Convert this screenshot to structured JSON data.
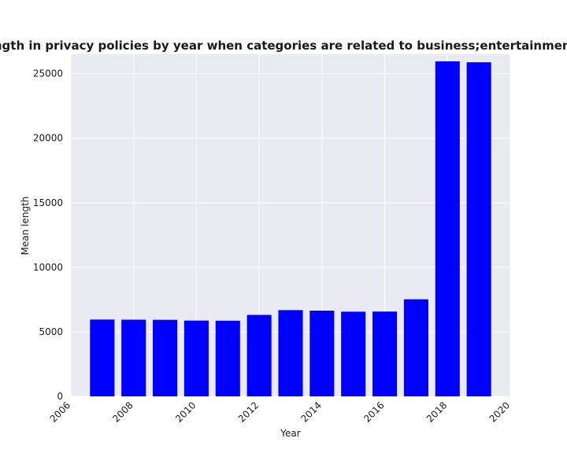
{
  "chart_data": {
    "type": "bar",
    "title": "Mean length in privacy policies by year when categories are related to business;entertainment;weapons",
    "xlabel": "Year",
    "ylabel": "Mean length",
    "x": [
      2007,
      2008,
      2009,
      2010,
      2011,
      2012,
      2013,
      2014,
      2015,
      2016,
      2017,
      2018,
      2019
    ],
    "values": [
      5950,
      5940,
      5930,
      5870,
      5860,
      6310,
      6680,
      6640,
      6560,
      6570,
      7520,
      25950,
      25880
    ],
    "xlim": [
      2006,
      2020
    ],
    "ylim": [
      0,
      26500
    ],
    "xticks": [
      "2006",
      "2008",
      "2010",
      "2012",
      "2014",
      "2016",
      "2018",
      "2020"
    ],
    "yticks": [
      "0",
      "5000",
      "10000",
      "15000",
      "20000",
      "25000"
    ],
    "grid": true,
    "colors": {
      "bar": "#0000ff",
      "plot_background": "#eaeaf2",
      "grid": "#ffffff"
    }
  }
}
